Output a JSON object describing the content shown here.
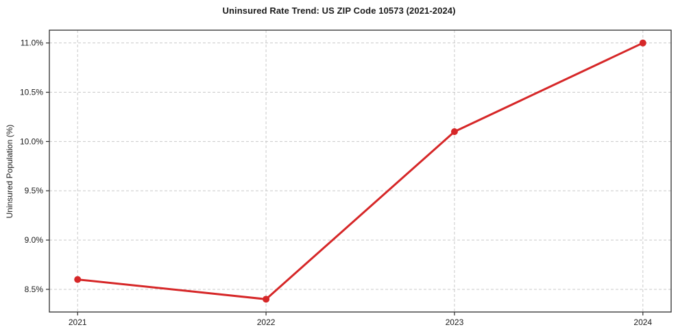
{
  "chart_data": {
    "type": "line",
    "title": "Uninsured Rate Trend: US ZIP Code 10573 (2021-2024)",
    "xlabel": "",
    "ylabel": "Uninsured Population (%)",
    "x": [
      2021,
      2022,
      2023,
      2024
    ],
    "x_tick_labels": [
      "2021",
      "2022",
      "2023",
      "2024"
    ],
    "series": [
      {
        "name": "Uninsured Population (%)",
        "values": [
          8.6,
          8.4,
          10.1,
          11.0
        ]
      }
    ],
    "y_ticks": [
      8.5,
      9.0,
      9.5,
      10.0,
      10.5,
      11.0
    ],
    "y_tick_labels": [
      "8.5%",
      "9.0%",
      "9.5%",
      "10.0%",
      "10.5%",
      "11.0%"
    ],
    "xlim": [
      2020.85,
      2024.15
    ],
    "ylim": [
      8.27,
      11.13
    ],
    "grid": true,
    "grid_style": "dashed",
    "legend_position": "none",
    "marker": "circle"
  },
  "colors": {
    "line": "#d62728",
    "marker": "#d62728",
    "grid": "#c9c9c9",
    "axis_border": "#2b2b2b",
    "tick_text": "#1a1a1a",
    "background": "#ffffff"
  }
}
